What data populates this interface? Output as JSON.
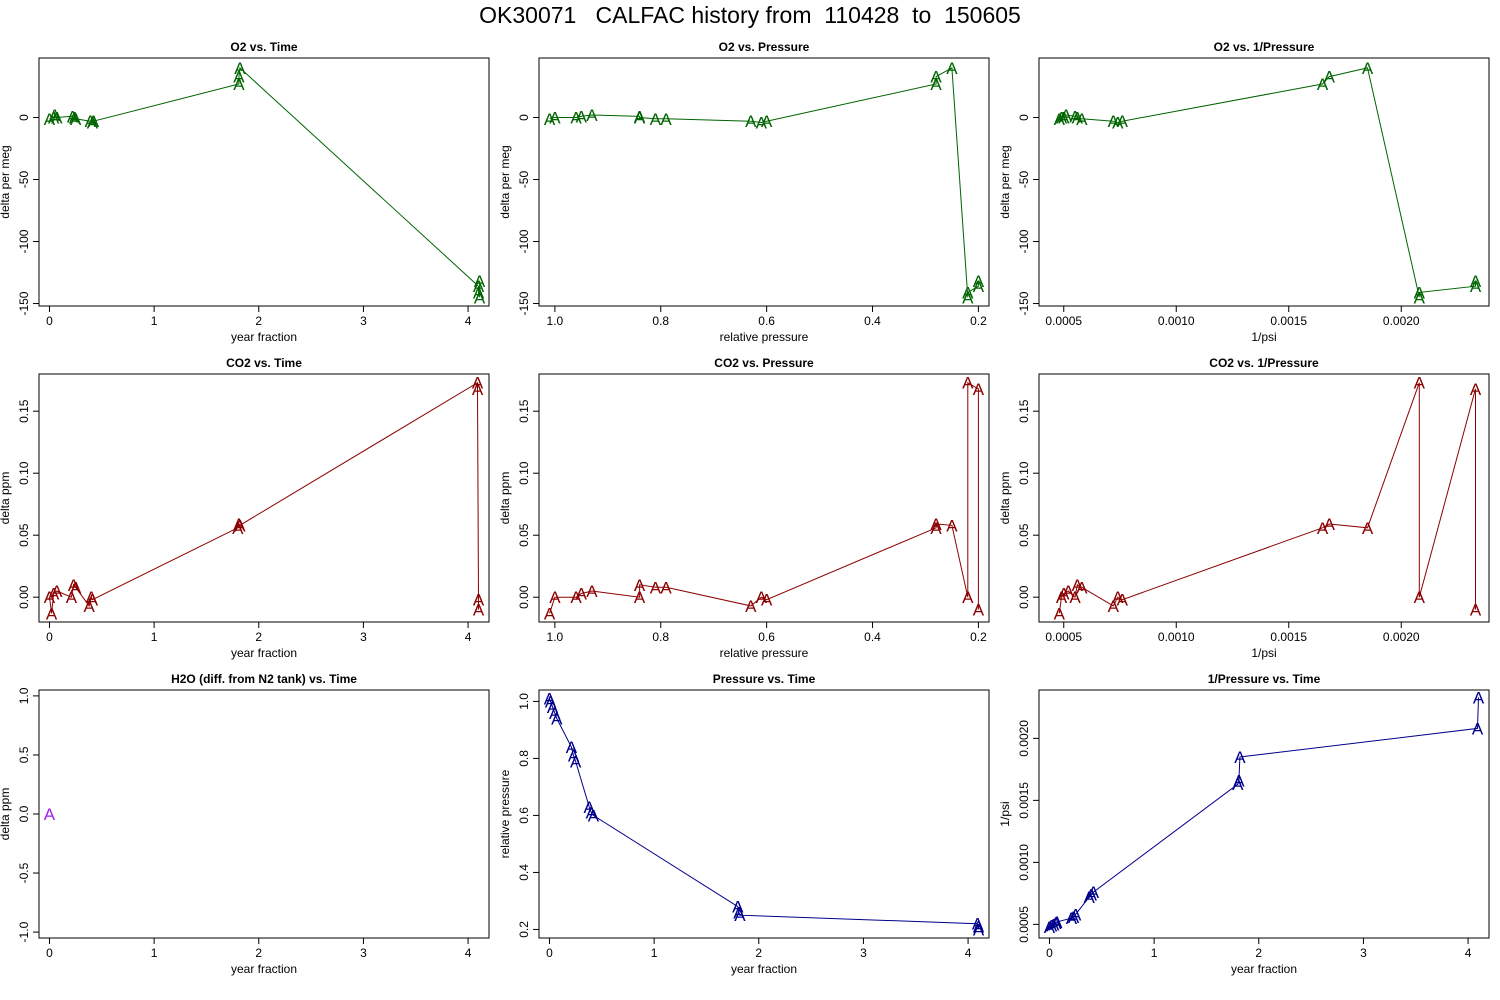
{
  "page": {
    "title": "OK30071   CALFAC history from  110428  to  150605"
  },
  "chart_data": [
    {
      "type": "line",
      "title": "O2 vs. Time",
      "xlabel": "year fraction",
      "ylabel": "delta per meg",
      "color": "#006400",
      "marker": "A",
      "xlim": [
        -0.1,
        4.2
      ],
      "ylim": [
        -152,
        48
      ],
      "xticks": [
        0,
        1,
        2,
        3,
        4
      ],
      "xtick_labels": [
        "0",
        "1",
        "2",
        "3",
        "4"
      ],
      "yticks": [
        0,
        -50,
        -100,
        -150
      ],
      "ytick_labels": [
        "0",
        "-50",
        "-100",
        "-150"
      ],
      "series": [
        {
          "x": [
            0.0,
            0.04,
            0.05,
            0.07,
            0.22,
            0.24,
            0.25,
            0.39,
            0.41,
            0.42,
            1.81,
            1.81,
            1.82,
            4.1,
            4.1,
            4.11,
            4.11
          ],
          "y": [
            -1,
            0,
            2,
            0,
            1,
            0,
            -1,
            -3,
            -4,
            -3,
            27,
            33,
            40,
            -136,
            -141,
            -145,
            -132
          ]
        }
      ]
    },
    {
      "type": "line",
      "title": "O2 vs. Pressure",
      "xlabel": "relative pressure",
      "ylabel": "delta per meg",
      "color": "#006400",
      "marker": "A",
      "xlim": [
        1.03,
        0.18
      ],
      "ylim": [
        -152,
        48
      ],
      "xticks": [
        1.0,
        0.8,
        0.6,
        0.4,
        0.2
      ],
      "xtick_labels": [
        "1.0",
        "0.8",
        "0.6",
        "0.4",
        "0.2"
      ],
      "yticks": [
        0,
        -50,
        -100,
        -150
      ],
      "ytick_labels": [
        "0",
        "-50",
        "-100",
        "-150"
      ],
      "series": [
        {
          "x": [
            1.01,
            1.0,
            0.96,
            0.95,
            0.93,
            0.84,
            0.84,
            0.81,
            0.79,
            0.63,
            0.61,
            0.6,
            0.28,
            0.28,
            0.25,
            0.22,
            0.22,
            0.2,
            0.2
          ],
          "y": [
            -1,
            0,
            0,
            1,
            2,
            1,
            0,
            -1,
            -1,
            -3,
            -4,
            -3,
            27,
            33,
            40,
            -145,
            -141,
            -136,
            -132
          ]
        }
      ]
    },
    {
      "type": "line",
      "title": "O2 vs. 1/Pressure",
      "xlabel": "1/psi",
      "ylabel": "delta per meg",
      "color": "#006400",
      "marker": "A",
      "xlim": [
        0.00039,
        0.00239
      ],
      "ylim": [
        -152,
        48
      ],
      "xticks": [
        0.0005,
        0.001,
        0.0015,
        0.002
      ],
      "xtick_labels": [
        "0.0005",
        "0.0010",
        "0.0015",
        "0.0020"
      ],
      "yticks": [
        0,
        -50,
        -100,
        -150
      ],
      "ytick_labels": [
        "0",
        "-50",
        "-100",
        "-150"
      ],
      "series": [
        {
          "x": [
            0.00048,
            0.00049,
            0.0005,
            0.00051,
            0.00055,
            0.00056,
            0.00058,
            0.00072,
            0.00074,
            0.00076,
            0.00165,
            0.00168,
            0.00185,
            0.00208,
            0.00208,
            0.00233,
            0.00233
          ],
          "y": [
            -1,
            0,
            0,
            2,
            1,
            0,
            -1,
            -3,
            -4,
            -3,
            27,
            33,
            40,
            -145,
            -141,
            -136,
            -132
          ]
        }
      ]
    },
    {
      "type": "line",
      "title": "CO2 vs. Time",
      "xlabel": "year fraction",
      "ylabel": "delta ppm",
      "color": "#8b0000",
      "marker": "A",
      "xlim": [
        -0.1,
        4.2
      ],
      "ylim": [
        -0.02,
        0.18
      ],
      "xticks": [
        0,
        1,
        2,
        3,
        4
      ],
      "xtick_labels": [
        "0",
        "1",
        "2",
        "3",
        "4"
      ],
      "yticks": [
        0.0,
        0.05,
        0.1,
        0.15
      ],
      "ytick_labels": [
        "0.00",
        "0.05",
        "0.10",
        "0.15"
      ],
      "series": [
        {
          "x": [
            0.0,
            0.02,
            0.04,
            0.07,
            0.21,
            0.23,
            0.25,
            0.38,
            0.4,
            0.41,
            1.8,
            1.81,
            1.82,
            4.09,
            4.09,
            4.1,
            4.1
          ],
          "y": [
            0.0,
            -0.013,
            0.003,
            0.005,
            0.0,
            0.01,
            0.008,
            -0.007,
            0.0,
            -0.002,
            0.056,
            0.059,
            0.058,
            0.173,
            0.168,
            -0.002,
            -0.01
          ]
        }
      ]
    },
    {
      "type": "line",
      "title": "CO2 vs. Pressure",
      "xlabel": "relative pressure",
      "ylabel": "delta ppm",
      "color": "#8b0000",
      "marker": "A",
      "xlim": [
        1.03,
        0.18
      ],
      "ylim": [
        -0.02,
        0.18
      ],
      "xticks": [
        1.0,
        0.8,
        0.6,
        0.4,
        0.2
      ],
      "xtick_labels": [
        "1.0",
        "0.8",
        "0.6",
        "0.4",
        "0.2"
      ],
      "yticks": [
        0.0,
        0.05,
        0.1,
        0.15
      ],
      "ytick_labels": [
        "0.00",
        "0.05",
        "0.10",
        "0.15"
      ],
      "series": [
        {
          "x": [
            1.01,
            1.0,
            0.96,
            0.95,
            0.93,
            0.84,
            0.84,
            0.81,
            0.79,
            0.63,
            0.61,
            0.6,
            0.28,
            0.28,
            0.25,
            0.22,
            0.22,
            0.2,
            0.2
          ],
          "y": [
            -0.013,
            0.0,
            0.0,
            0.003,
            0.005,
            0.0,
            0.01,
            0.008,
            0.008,
            -0.007,
            0.0,
            -0.002,
            0.056,
            0.059,
            0.058,
            0.0,
            0.173,
            0.168,
            -0.01
          ]
        }
      ]
    },
    {
      "type": "line",
      "title": "CO2 vs. 1/Pressure",
      "xlabel": "1/psi",
      "ylabel": "delta ppm",
      "color": "#8b0000",
      "marker": "A",
      "xlim": [
        0.00039,
        0.00239
      ],
      "ylim": [
        -0.02,
        0.18
      ],
      "xticks": [
        0.0005,
        0.001,
        0.0015,
        0.002
      ],
      "xtick_labels": [
        "0.0005",
        "0.0010",
        "0.0015",
        "0.0020"
      ],
      "yticks": [
        0.0,
        0.05,
        0.1,
        0.15
      ],
      "ytick_labels": [
        "0.00",
        "0.05",
        "0.10",
        "0.15"
      ],
      "series": [
        {
          "x": [
            0.00048,
            0.00049,
            0.0005,
            0.00052,
            0.00055,
            0.00056,
            0.00058,
            0.00072,
            0.00074,
            0.00076,
            0.00165,
            0.00168,
            0.00185,
            0.00208,
            0.00208,
            0.00233,
            0.00233
          ],
          "y": [
            -0.013,
            0.0,
            0.003,
            0.005,
            0.0,
            0.01,
            0.008,
            -0.007,
            0.0,
            -0.002,
            0.056,
            0.059,
            0.056,
            0.173,
            0.0,
            0.168,
            -0.01
          ]
        }
      ]
    },
    {
      "type": "scatter",
      "title": "H2O (diff. from N2 tank) vs. Time",
      "xlabel": "year fraction",
      "ylabel": "delta ppm",
      "color": "#a020f0",
      "marker": "A",
      "xlim": [
        -0.1,
        4.2
      ],
      "ylim": [
        -1.05,
        1.05
      ],
      "xticks": [
        0,
        1,
        2,
        3,
        4
      ],
      "xtick_labels": [
        "0",
        "1",
        "2",
        "3",
        "4"
      ],
      "yticks": [
        1.0,
        0.5,
        0.0,
        -0.5,
        -1.0
      ],
      "ytick_labels": [
        "1.0",
        "0.5",
        "0.0",
        "-0.5",
        "-1.0"
      ],
      "series": [
        {
          "x": [
            0.0
          ],
          "y": [
            0.0
          ]
        }
      ]
    },
    {
      "type": "line",
      "title": "Pressure vs. Time",
      "xlabel": "year fraction",
      "ylabel": "relative pressure",
      "color": "#00008b",
      "marker": "A",
      "xlim": [
        -0.1,
        4.2
      ],
      "ylim": [
        0.17,
        1.04
      ],
      "xticks": [
        0,
        1,
        2,
        3,
        4
      ],
      "xtick_labels": [
        "0",
        "1",
        "2",
        "3",
        "4"
      ],
      "yticks": [
        0.2,
        0.4,
        0.6,
        0.8,
        1.0
      ],
      "ytick_labels": [
        "0.2",
        "0.4",
        "0.6",
        "0.8",
        "1.0"
      ],
      "series": [
        {
          "x": [
            0.0,
            0.01,
            0.03,
            0.05,
            0.07,
            0.21,
            0.23,
            0.25,
            0.38,
            0.4,
            0.42,
            1.8,
            1.81,
            1.82,
            4.09,
            4.1,
            4.1
          ],
          "y": [
            1.01,
            1.0,
            0.98,
            0.96,
            0.94,
            0.84,
            0.81,
            0.79,
            0.63,
            0.61,
            0.6,
            0.28,
            0.26,
            0.25,
            0.22,
            0.21,
            0.2
          ]
        }
      ]
    },
    {
      "type": "line",
      "title": "1/Pressure vs. Time",
      "xlabel": "year fraction",
      "ylabel": "1/psi",
      "color": "#00008b",
      "marker": "A",
      "xlim": [
        -0.1,
        4.2
      ],
      "ylim": [
        0.00039,
        0.00239
      ],
      "xticks": [
        0,
        1,
        2,
        3,
        4
      ],
      "xtick_labels": [
        "0",
        "1",
        "2",
        "3",
        "4"
      ],
      "yticks": [
        0.0005,
        0.001,
        0.0015,
        0.002
      ],
      "ytick_labels": [
        "0.0005",
        "0.0010",
        "0.0015",
        "0.0020"
      ],
      "series": [
        {
          "x": [
            0.0,
            0.02,
            0.04,
            0.06,
            0.07,
            0.21,
            0.23,
            0.25,
            0.38,
            0.4,
            0.42,
            1.8,
            1.81,
            1.82,
            4.09,
            4.1
          ],
          "y": [
            0.00048,
            0.00049,
            0.0005,
            0.00051,
            0.00052,
            0.00055,
            0.00056,
            0.00058,
            0.00072,
            0.00074,
            0.00076,
            0.00163,
            0.00166,
            0.00185,
            0.00208,
            0.00233
          ]
        }
      ]
    }
  ]
}
